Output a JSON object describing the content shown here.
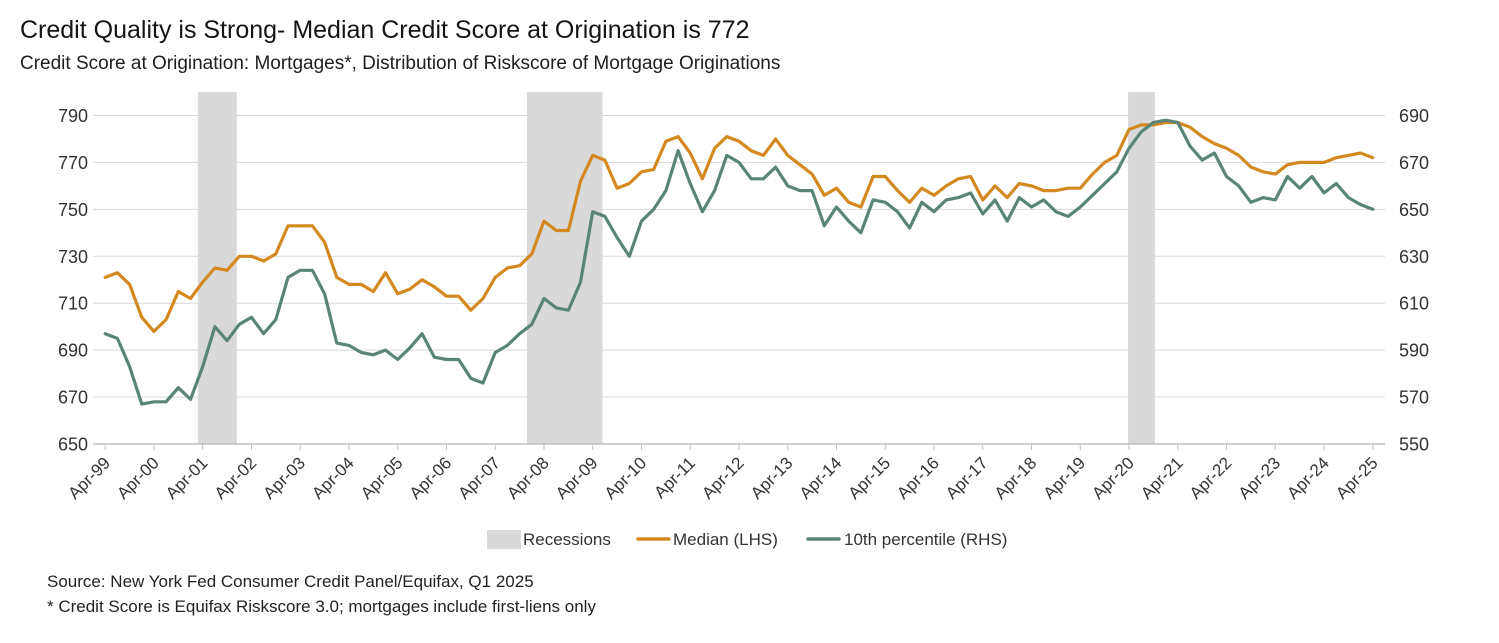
{
  "footer": {
    "source": "Source: New York Fed Consumer Credit Panel/Equifax, Q1 2025",
    "footnote": "* Credit Score is Equifax Riskscore 3.0; mortgages include first-liens only"
  },
  "chart_data": {
    "type": "line",
    "title": "Credit Quality is Strong- Median Credit Score at Origination is 772",
    "subtitle": "Credit Score at Origination: Mortgages*, Distribution of Riskscore of Mortgage Originations",
    "x_start": 1999.25,
    "x_step": 0.25,
    "xlim": [
      1999.0,
      2025.5
    ],
    "x_tick_start": 1999.25,
    "x_tick_step": 1,
    "x_tick_labels": [
      "Apr-99",
      "Apr-00",
      "Apr-01",
      "Apr-02",
      "Apr-03",
      "Apr-04",
      "Apr-05",
      "Apr-06",
      "Apr-07",
      "Apr-08",
      "Apr-09",
      "Apr-10",
      "Apr-11",
      "Apr-12",
      "Apr-13",
      "Apr-14",
      "Apr-15",
      "Apr-16",
      "Apr-17",
      "Apr-18",
      "Apr-19",
      "Apr-20",
      "Apr-21",
      "Apr-22",
      "Apr-23",
      "Apr-24",
      "Apr-25"
    ],
    "y_left": {
      "lim": [
        650,
        800
      ],
      "ticks": [
        650,
        670,
        690,
        710,
        730,
        750,
        770,
        790
      ]
    },
    "y_right": {
      "lim": [
        550,
        700
      ],
      "ticks": [
        550,
        570,
        590,
        610,
        630,
        650,
        670,
        690
      ]
    },
    "grid": true,
    "grid_color": "#D9D9D9",
    "axis_color": "#BFBFBF",
    "recession_label": "Recessions",
    "recession_color": "#D9D9D9",
    "recessions": [
      {
        "start": 2001.15,
        "end": 2001.95
      },
      {
        "start": 2007.9,
        "end": 2009.45
      },
      {
        "start": 2020.23,
        "end": 2020.78
      }
    ],
    "series": [
      {
        "name": "Median (LHS)",
        "color": "#D3891F",
        "values": [
          721,
          723,
          718,
          704,
          698,
          703,
          715,
          712,
          719,
          725,
          724,
          730,
          730,
          728,
          731,
          743,
          743,
          743,
          736,
          721,
          718,
          718,
          715,
          723,
          714,
          716,
          720,
          717,
          713,
          713,
          707,
          712,
          721,
          725,
          726,
          731,
          745,
          741,
          741,
          762,
          773,
          771,
          759,
          761,
          766,
          767,
          779,
          781,
          774,
          763,
          776,
          781,
          779,
          775,
          773,
          780,
          773,
          769,
          765,
          756,
          759,
          753,
          751,
          764,
          764,
          758,
          753,
          759,
          756,
          760,
          763,
          764,
          754,
          760,
          755,
          761,
          760,
          758,
          758,
          759,
          759,
          765,
          770,
          773,
          784,
          786,
          786,
          787,
          787,
          785,
          781,
          778,
          776,
          773,
          768,
          766,
          765,
          769,
          770,
          770,
          770,
          772,
          773,
          774,
          772
        ]
      },
      {
        "name": "10th percentile (RHS)",
        "color": "#5A8575",
        "values": [
          597,
          595,
          583,
          567,
          568,
          568,
          574,
          569,
          583,
          600,
          594,
          601,
          604,
          597,
          603,
          621,
          624,
          624,
          614,
          593,
          592,
          589,
          588,
          590,
          586,
          591,
          597,
          587,
          586,
          586,
          578,
          576,
          589,
          592,
          597,
          601,
          612,
          608,
          607,
          619,
          649,
          647,
          638,
          630,
          645,
          650,
          658,
          675,
          661,
          649,
          658,
          673,
          670,
          663,
          663,
          668,
          660,
          658,
          658,
          643,
          651,
          645,
          640,
          654,
          653,
          649,
          642,
          653,
          649,
          654,
          655,
          657,
          648,
          654,
          645,
          655,
          651,
          654,
          649,
          647,
          651,
          656,
          661,
          666,
          676,
          683,
          687,
          688,
          687,
          677,
          671,
          674,
          664,
          660,
          653,
          655,
          654,
          664,
          659,
          664,
          657,
          661,
          655,
          652,
          650
        ]
      }
    ]
  }
}
